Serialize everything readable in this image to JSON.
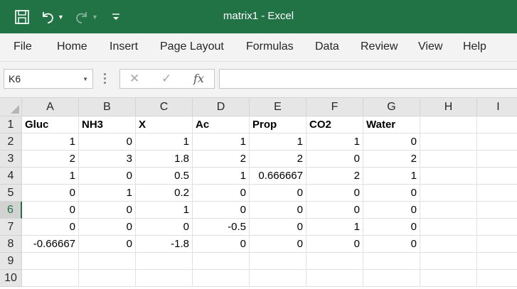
{
  "window": {
    "title": "matrix1  -  Excel",
    "accent_color": "#217346"
  },
  "quick_access": {
    "icons": [
      "save-icon",
      "undo-icon",
      "redo-icon",
      "customize-qat-icon"
    ]
  },
  "ribbon": {
    "tabs": [
      "File",
      "Home",
      "Insert",
      "Page Layout",
      "Formulas",
      "Data",
      "Review",
      "View",
      "Help"
    ]
  },
  "formula_bar": {
    "name_box": "K6",
    "formula": "",
    "fx_label": "fx",
    "cancel_glyph": "✕",
    "enter_glyph": "✓"
  },
  "sheet": {
    "columns": [
      "A",
      "B",
      "C",
      "D",
      "E",
      "F",
      "G",
      "H",
      "I"
    ],
    "rows": [
      "1",
      "2",
      "3",
      "4",
      "5",
      "6",
      "7",
      "8",
      "9",
      "10"
    ],
    "active_row": "6",
    "cells": [
      [
        "Gluc",
        "NH3",
        "X",
        "Ac",
        "Prop",
        "CO2",
        "Water",
        "",
        ""
      ],
      [
        "1",
        "0",
        "1",
        "1",
        "1",
        "1",
        "0",
        "",
        ""
      ],
      [
        "2",
        "3",
        "1.8",
        "2",
        "2",
        "0",
        "2",
        "",
        ""
      ],
      [
        "1",
        "0",
        "0.5",
        "1",
        "0.666667",
        "2",
        "1",
        "",
        ""
      ],
      [
        "0",
        "1",
        "0.2",
        "0",
        "0",
        "0",
        "0",
        "",
        ""
      ],
      [
        "0",
        "0",
        "1",
        "0",
        "0",
        "0",
        "0",
        "",
        ""
      ],
      [
        "0",
        "0",
        "0",
        "-0.5",
        "0",
        "1",
        "0",
        "",
        ""
      ],
      [
        "-0.66667",
        "0",
        "-1.8",
        "0",
        "0",
        "0",
        "0",
        "",
        ""
      ],
      [
        "",
        "",
        "",
        "",
        "",
        "",
        "",
        "",
        ""
      ],
      [
        "",
        "",
        "",
        "",
        "",
        "",
        "",
        "",
        ""
      ]
    ]
  }
}
